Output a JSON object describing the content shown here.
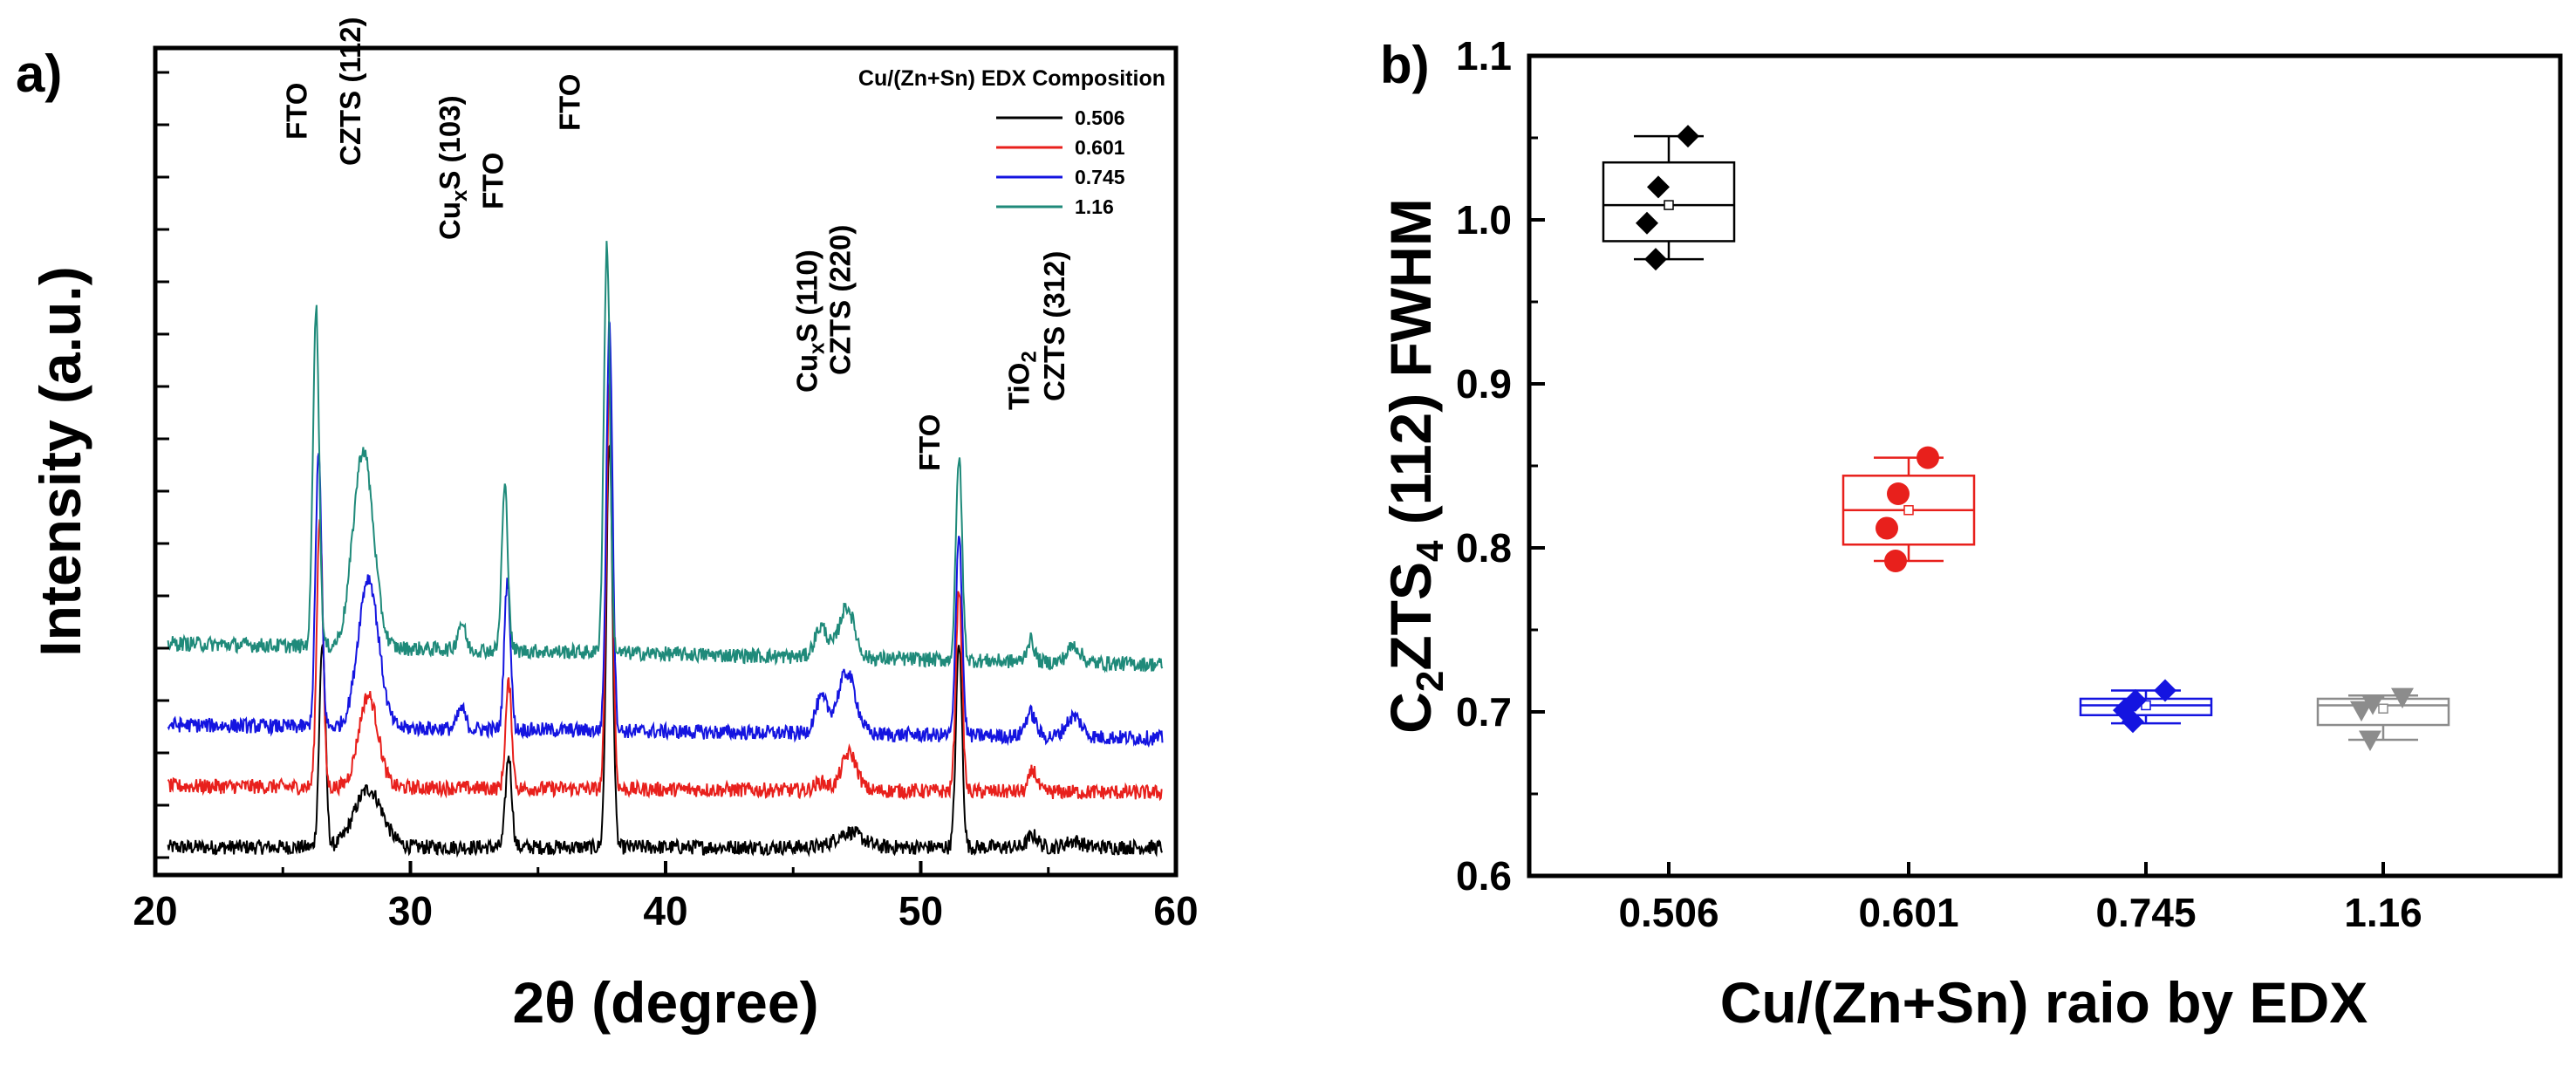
{
  "chart_data": [
    {
      "panel": "a)",
      "type": "line",
      "xlabel": "2θ (degree)",
      "ylabel": "Intensity (a.u.)",
      "xlim": [
        20,
        60
      ],
      "x_ticks": [
        "20",
        "30",
        "40",
        "50",
        "60"
      ],
      "legend": {
        "title": "Cu/(Zn+Sn) EDX Composition",
        "placement": "top-right",
        "entries": [
          {
            "label": "0.506",
            "color": "#000000"
          },
          {
            "label": "0.601",
            "color": "#e8201c"
          },
          {
            "label": "0.745",
            "color": "#1414e0"
          },
          {
            "label": "1.16",
            "color": "#1f8a7a"
          }
        ]
      },
      "annotations": [
        {
          "text": "FTO",
          "x": 26.0
        },
        {
          "text": "CZTS (112)",
          "x": 28.1
        },
        {
          "text": "CuxS (103)",
          "sub": "x",
          "x": 32.0
        },
        {
          "text": "FTO",
          "x": 33.7
        },
        {
          "text": "FTO",
          "x": 36.7
        },
        {
          "text": "CuxS (110)",
          "sub": "x",
          "x": 46.0
        },
        {
          "text": "CZTS (220)",
          "x": 47.3
        },
        {
          "text": "FTO",
          "x": 50.8
        },
        {
          "text": "TiO2",
          "sub": "2",
          "x": 54.3
        },
        {
          "text": "CZTS (312)",
          "x": 55.7
        }
      ],
      "series": [
        {
          "name": "0.506",
          "color": "#000000",
          "baseline": 0.05,
          "slope": 0.0,
          "peaks": [
            [
              26.55,
              3.0,
              0.12
            ],
            [
              28.35,
              0.85,
              0.55
            ],
            [
              33.85,
              1.35,
              0.12
            ],
            [
              37.8,
              6.0,
              0.12
            ],
            [
              47.2,
              0.22,
              0.5
            ],
            [
              51.5,
              3.0,
              0.12
            ],
            [
              54.4,
              0.17,
              0.2
            ],
            [
              56.0,
              0.09,
              0.3
            ]
          ]
        },
        {
          "name": "0.601",
          "color": "#e8201c",
          "baseline": 0.95,
          "slope": -0.0025,
          "peaks": [
            [
              26.45,
              4.0,
              0.12
            ],
            [
              28.35,
              1.35,
              0.38
            ],
            [
              33.85,
              1.55,
              0.12
            ],
            [
              37.8,
              6.0,
              0.12
            ],
            [
              46.1,
              0.12,
              0.25
            ],
            [
              47.2,
              0.55,
              0.3
            ],
            [
              51.5,
              3.0,
              0.12
            ],
            [
              54.4,
              0.32,
              0.15
            ]
          ]
        },
        {
          "name": "0.745",
          "color": "#1414e0",
          "baseline": 1.85,
          "slope": -0.005,
          "peaks": [
            [
              26.4,
              4.0,
              0.12
            ],
            [
              28.35,
              2.2,
              0.4
            ],
            [
              32.0,
              0.3,
              0.15
            ],
            [
              33.8,
              2.2,
              0.12
            ],
            [
              37.8,
              6.0,
              0.12
            ],
            [
              46.1,
              0.5,
              0.25
            ],
            [
              47.1,
              0.9,
              0.35
            ],
            [
              51.5,
              3.0,
              0.12
            ],
            [
              54.3,
              0.35,
              0.2
            ],
            [
              56.0,
              0.3,
              0.3
            ]
          ]
        },
        {
          "name": "1.16",
          "color": "#1f8a7a",
          "baseline": 3.05,
          "slope": -0.008,
          "peaks": [
            [
              26.3,
              5.0,
              0.12
            ],
            [
              28.15,
              2.9,
              0.4
            ],
            [
              32.0,
              0.4,
              0.15
            ],
            [
              33.7,
              2.4,
              0.12
            ],
            [
              37.7,
              6.0,
              0.12
            ],
            [
              46.1,
              0.45,
              0.25
            ],
            [
              47.1,
              0.75,
              0.3
            ],
            [
              51.5,
              3.0,
              0.12
            ],
            [
              54.3,
              0.32,
              0.15
            ],
            [
              56.0,
              0.25,
              0.25
            ]
          ]
        }
      ]
    },
    {
      "panel": "b)",
      "type": "box",
      "xlabel": "Cu/(Zn+Sn) raio by EDX",
      "ylabel": "C2ZTS4 (112) FWHM",
      "ylim": [
        0.6,
        1.1
      ],
      "y_ticks": [
        "0.6",
        "0.7",
        "0.8",
        "0.9",
        "1.0",
        "1.1"
      ],
      "categories": [
        "0.506",
        "0.601",
        "0.745",
        "1.16"
      ],
      "boxes": [
        {
          "category": "0.506",
          "color": "#000000",
          "marker": "diamond",
          "q1": 0.987,
          "median": 1.009,
          "q3": 1.035,
          "mean": 1.009,
          "whisker_low": 0.976,
          "whisker_high": 1.051,
          "points": [
            1.051,
            1.02,
            0.998,
            0.976
          ]
        },
        {
          "category": "0.601",
          "color": "#e8201c",
          "marker": "circle",
          "q1": 0.802,
          "median": 0.823,
          "q3": 0.844,
          "mean": 0.823,
          "whisker_low": 0.792,
          "whisker_high": 0.855,
          "points": [
            0.855,
            0.833,
            0.812,
            0.792
          ]
        },
        {
          "category": "0.745",
          "color": "#1414e0",
          "marker": "diamond",
          "q1": 0.698,
          "median": 0.704,
          "q3": 0.708,
          "mean": 0.704,
          "whisker_low": 0.693,
          "whisker_high": 0.713,
          "points": [
            0.713,
            0.707,
            0.701,
            0.694
          ]
        },
        {
          "category": "1.16",
          "color": "#8c8c8c",
          "marker": "triangle-down",
          "q1": 0.692,
          "median": 0.704,
          "q3": 0.708,
          "mean": 0.702,
          "whisker_low": 0.683,
          "whisker_high": 0.71,
          "points": [
            0.709,
            0.705,
            0.701,
            0.683
          ]
        }
      ]
    }
  ]
}
